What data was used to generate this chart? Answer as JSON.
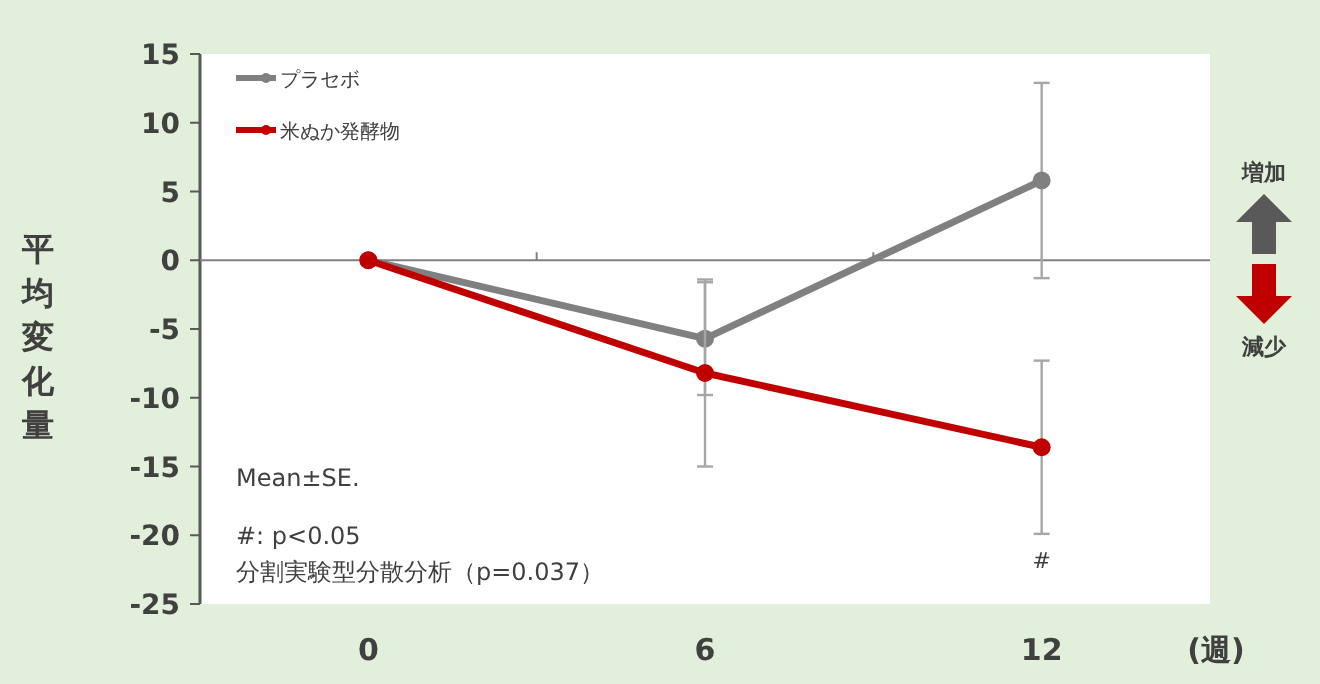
{
  "chart_data": {
    "type": "line",
    "ylabel": "平均変化量",
    "xlabel": "(週)",
    "categories": [
      "0",
      "6",
      "12"
    ],
    "ylim": [
      -25,
      15
    ],
    "yticks": [
      -25,
      -20,
      -15,
      -10,
      -5,
      0,
      5,
      10,
      15
    ],
    "legend": "top left",
    "marker": "circle",
    "line_style": "solid",
    "series": [
      {
        "name": "プラセボ",
        "color": "#808080",
        "values": [
          0,
          -5.7,
          5.8
        ],
        "errors": [
          null,
          4.1,
          7.1
        ]
      },
      {
        "name": "米ぬか発酵物",
        "color": "#c00000",
        "values": [
          0,
          -8.2,
          -13.6
        ],
        "errors": [
          null,
          6.8,
          6.3
        ]
      }
    ],
    "annotations": [
      "Mean±SE.",
      "#: p<0.05",
      "分割実験型分散分析（p=0.037）",
      "#",
      "増加",
      "減少"
    ]
  }
}
